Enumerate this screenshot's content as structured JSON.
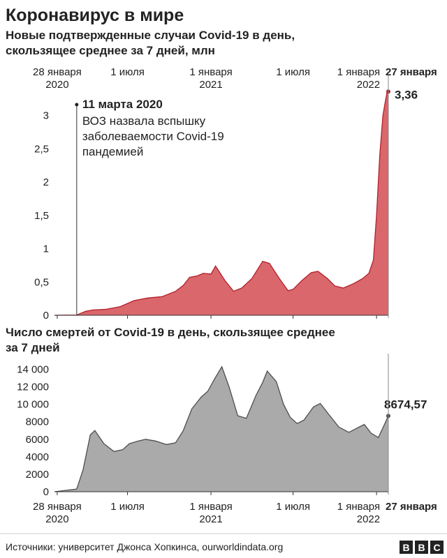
{
  "title": "Коронавирус в мире",
  "source": "Источники: университет Джонса Хопкинса, ourworldindata.org",
  "logo": [
    "B",
    "B",
    "C"
  ],
  "chart_data": [
    {
      "type": "area",
      "title": [
        "Новые подтвержденные случаи Covid-19 в день,",
        "скользящее среднее за 7 дней, млн"
      ],
      "color": "#d9676c",
      "line_color": "#b3202c",
      "xlim": [
        "2020-01-22",
        "2022-01-27"
      ],
      "xticks": [
        {
          "value": "2020-01-28",
          "label": "28 января 2020"
        },
        {
          "value": "2020-07-01",
          "label": "1 июля"
        },
        {
          "value": "2021-01-01",
          "label": "1 января 2021"
        },
        {
          "value": "2021-07-01",
          "label": "1 июля"
        },
        {
          "value": "2022-01-01",
          "label": "1 января 2022"
        },
        {
          "value": "2022-01-27",
          "label": "27 января"
        }
      ],
      "ylim": [
        0,
        3.5
      ],
      "yticks": [
        0,
        {
          "value": 0.5,
          "label": "0,5"
        },
        1,
        {
          "value": 1.5,
          "label": "1,5"
        },
        2,
        {
          "value": 2.5,
          "label": "2,5"
        },
        3
      ],
      "annotation": {
        "x": "2020-03-11",
        "title": "11 марта 2020",
        "lines": [
          "ВОЗ назвала вспышку",
          "заболеваемости Covid-19",
          "пандемией"
        ]
      },
      "x": [
        "2020-01-22",
        "2020-02-15",
        "2020-03-11",
        "2020-03-31",
        "2020-04-15",
        "2020-05-15",
        "2020-06-15",
        "2020-07-15",
        "2020-08-15",
        "2020-09-15",
        "2020-10-15",
        "2020-11-01",
        "2020-11-15",
        "2020-12-01",
        "2020-12-15",
        "2021-01-01",
        "2021-01-11",
        "2021-02-01",
        "2021-02-20",
        "2021-03-10",
        "2021-04-01",
        "2021-04-25",
        "2021-05-10",
        "2021-06-01",
        "2021-06-20",
        "2021-07-01",
        "2021-07-20",
        "2021-08-10",
        "2021-08-25",
        "2021-09-15",
        "2021-10-01",
        "2021-10-20",
        "2021-11-10",
        "2021-12-01",
        "2021-12-15",
        "2021-12-25",
        "2022-01-01",
        "2022-01-08",
        "2022-01-15",
        "2022-01-20",
        "2022-01-25",
        "2022-01-27"
      ],
      "values": [
        0,
        0.002,
        0.004,
        0.06,
        0.08,
        0.09,
        0.13,
        0.22,
        0.26,
        0.28,
        0.36,
        0.45,
        0.57,
        0.59,
        0.63,
        0.62,
        0.74,
        0.52,
        0.36,
        0.41,
        0.55,
        0.81,
        0.78,
        0.55,
        0.37,
        0.39,
        0.52,
        0.64,
        0.66,
        0.55,
        0.44,
        0.41,
        0.47,
        0.55,
        0.63,
        0.83,
        1.5,
        2.4,
        3.0,
        3.2,
        3.38,
        3.36
      ],
      "value_labels": [
        null,
        null,
        null,
        null,
        null,
        null,
        null,
        null,
        null,
        null,
        null,
        null,
        null,
        null,
        null,
        null,
        null,
        null,
        null,
        null,
        null,
        null,
        null,
        null,
        null,
        null,
        null,
        null,
        null,
        null,
        null,
        null,
        null,
        null,
        null,
        null,
        null,
        null,
        null,
        null,
        null,
        "3,36"
      ]
    },
    {
      "type": "area",
      "title": [
        "Число смертей от Covid-19 в день, скользящее среднее",
        "за 7 дней"
      ],
      "color": "#aaaaaa",
      "line_color": "#4d4d4d",
      "xlim": [
        "2020-01-22",
        "2022-01-27"
      ],
      "xticks": [
        {
          "value": "2020-01-28",
          "label": "28 января 2020"
        },
        {
          "value": "2020-07-01",
          "label": "1 июля"
        },
        {
          "value": "2021-01-01",
          "label": "1 января 2021"
        },
        {
          "value": "2021-07-01",
          "label": "1 июля"
        },
        {
          "value": "2022-01-01",
          "label": "1 января 2022"
        },
        {
          "value": "2022-01-27",
          "label": "27 января"
        }
      ],
      "ylim": [
        0,
        15000
      ],
      "yticks": [
        0,
        2000,
        4000,
        6000,
        8000,
        {
          "value": 10000,
          "label": "10 000"
        },
        {
          "value": 12000,
          "label": "12 000"
        },
        {
          "value": 14000,
          "label": "14 000"
        }
      ],
      "x": [
        "2020-01-22",
        "2020-03-11",
        "2020-03-25",
        "2020-04-10",
        "2020-04-20",
        "2020-05-10",
        "2020-06-01",
        "2020-06-20",
        "2020-07-05",
        "2020-07-25",
        "2020-08-10",
        "2020-09-01",
        "2020-09-25",
        "2020-10-15",
        "2020-11-01",
        "2020-11-20",
        "2020-12-10",
        "2020-12-25",
        "2021-01-10",
        "2021-01-25",
        "2021-02-10",
        "2021-03-01",
        "2021-03-20",
        "2021-04-10",
        "2021-04-25",
        "2021-05-05",
        "2021-05-25",
        "2021-06-10",
        "2021-06-25",
        "2021-07-10",
        "2021-07-25",
        "2021-08-15",
        "2021-08-30",
        "2021-09-20",
        "2021-10-10",
        "2021-11-01",
        "2021-11-20",
        "2021-12-05",
        "2021-12-20",
        "2022-01-05",
        "2022-01-15",
        "2022-01-27"
      ],
      "values": [
        0,
        300,
        2500,
        6500,
        7000,
        5500,
        4600,
        4800,
        5500,
        5800,
        6000,
        5800,
        5400,
        5600,
        7000,
        9500,
        10800,
        11500,
        13000,
        14300,
        12000,
        8700,
        8400,
        11000,
        12500,
        13800,
        12600,
        10000,
        8500,
        7800,
        8200,
        9700,
        10100,
        8700,
        7400,
        6800,
        7300,
        7700,
        6700,
        6200,
        7300,
        8674.57
      ],
      "value_labels": [
        null,
        null,
        null,
        null,
        null,
        null,
        null,
        null,
        null,
        null,
        null,
        null,
        null,
        null,
        null,
        null,
        null,
        null,
        null,
        null,
        null,
        null,
        null,
        null,
        null,
        null,
        null,
        null,
        null,
        null,
        null,
        null,
        null,
        null,
        null,
        null,
        null,
        null,
        null,
        null,
        null,
        "8674,57"
      ]
    }
  ]
}
